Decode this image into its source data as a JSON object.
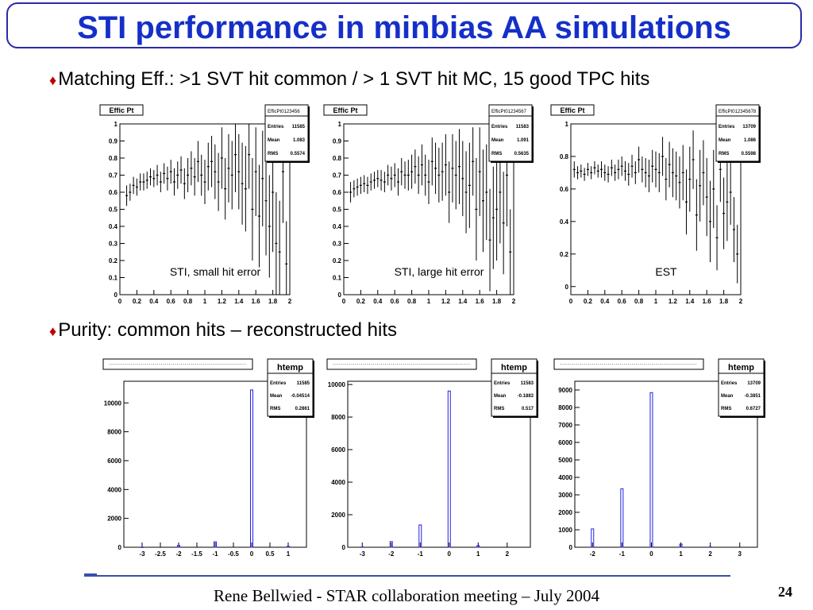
{
  "title": "STI performance in minbias AA simulations",
  "bullet1": "Matching Eff.: >1 SVT hit common / > 1 SVT hit MC, 15 good TPC hits",
  "bullet2": "Purity: common hits – reconstructed hits",
  "bullet_symbol": "♦",
  "footer": "Rene Bellwied - STAR collaboration meeting – July 2004",
  "page_number": "24",
  "chart_data": [
    {
      "type": "scatter",
      "frame_title": "Effic Pt",
      "stats": {
        "name": "EfficPt0123456",
        "rows": [
          [
            "Entries",
            "11585"
          ],
          [
            "Mean",
            "1.083"
          ],
          [
            "RMS",
            "0.5574"
          ]
        ]
      },
      "label": "STI, small hit error",
      "xlim": [
        0,
        2
      ],
      "ylim": [
        0,
        1
      ],
      "xticks": [
        "0",
        "0.2",
        "0.4",
        "0.6",
        "0.8",
        "1",
        "1.2",
        "1.4",
        "1.6",
        "1.8",
        "2"
      ],
      "yticks": [
        "0",
        "0.1",
        "0.2",
        "0.3",
        "0.4",
        "0.5",
        "0.6",
        "0.7",
        "0.8",
        "0.9",
        "1"
      ],
      "ytick_values": [
        0,
        0.1,
        0.2,
        0.3,
        0.4,
        0.5,
        0.6,
        0.7,
        0.8,
        0.9,
        1
      ],
      "x": [
        0.08,
        0.12,
        0.16,
        0.2,
        0.24,
        0.28,
        0.32,
        0.36,
        0.4,
        0.44,
        0.48,
        0.52,
        0.56,
        0.6,
        0.64,
        0.68,
        0.72,
        0.76,
        0.8,
        0.84,
        0.88,
        0.92,
        0.96,
        1.0,
        1.04,
        1.08,
        1.12,
        1.16,
        1.2,
        1.24,
        1.28,
        1.32,
        1.36,
        1.4,
        1.44,
        1.48,
        1.52,
        1.56,
        1.6,
        1.64,
        1.68,
        1.72,
        1.76,
        1.8,
        1.84,
        1.88,
        1.92,
        1.96
      ],
      "y": [
        0.58,
        0.6,
        0.64,
        0.63,
        0.66,
        0.66,
        0.67,
        0.69,
        0.68,
        0.7,
        0.66,
        0.71,
        0.68,
        0.72,
        0.66,
        0.7,
        0.73,
        0.65,
        0.7,
        0.74,
        0.69,
        0.78,
        0.7,
        0.66,
        0.75,
        0.78,
        0.72,
        0.66,
        0.8,
        0.62,
        0.74,
        0.7,
        0.82,
        0.72,
        0.65,
        0.62,
        0.82,
        0.5,
        0.72,
        0.46,
        0.68,
        0.55,
        0.4,
        0.6,
        0.3,
        0.25,
        0.72,
        0.18
      ],
      "err": [
        0.06,
        0.05,
        0.05,
        0.05,
        0.05,
        0.05,
        0.05,
        0.05,
        0.05,
        0.06,
        0.06,
        0.06,
        0.07,
        0.07,
        0.08,
        0.08,
        0.08,
        0.09,
        0.1,
        0.1,
        0.11,
        0.12,
        0.12,
        0.13,
        0.14,
        0.15,
        0.16,
        0.17,
        0.18,
        0.18,
        0.2,
        0.2,
        0.22,
        0.22,
        0.24,
        0.25,
        0.2,
        0.3,
        0.26,
        0.3,
        0.28,
        0.32,
        0.3,
        0.35,
        0.3,
        0.3,
        0.3,
        0.25
      ]
    },
    {
      "type": "scatter",
      "frame_title": "Effic Pt",
      "stats": {
        "name": "EfficPt01234567",
        "rows": [
          [
            "Entries",
            "11583"
          ],
          [
            "Mean",
            "1.091"
          ],
          [
            "RMS",
            "0.5635"
          ]
        ]
      },
      "label": "STI, large hit error",
      "xlim": [
        0,
        2
      ],
      "ylim": [
        0,
        1
      ],
      "xticks": [
        "0",
        "0.2",
        "0.4",
        "0.6",
        "0.8",
        "1",
        "1.2",
        "1.4",
        "1.6",
        "1.8",
        "2"
      ],
      "yticks": [
        "0",
        "0.1",
        "0.2",
        "0.3",
        "0.4",
        "0.5",
        "0.6",
        "0.7",
        "0.8",
        "0.9",
        "1"
      ],
      "ytick_values": [
        0,
        0.1,
        0.2,
        0.3,
        0.4,
        0.5,
        0.6,
        0.7,
        0.8,
        0.9,
        1
      ],
      "x": [
        0.08,
        0.12,
        0.16,
        0.2,
        0.24,
        0.28,
        0.32,
        0.36,
        0.4,
        0.44,
        0.48,
        0.52,
        0.56,
        0.6,
        0.64,
        0.68,
        0.72,
        0.76,
        0.8,
        0.84,
        0.88,
        0.92,
        0.96,
        1.0,
        1.04,
        1.08,
        1.12,
        1.16,
        1.2,
        1.24,
        1.28,
        1.32,
        1.36,
        1.4,
        1.44,
        1.48,
        1.52,
        1.56,
        1.6,
        1.64,
        1.68,
        1.72,
        1.76,
        1.8,
        1.84,
        1.88,
        1.92,
        1.96
      ],
      "y": [
        0.6,
        0.62,
        0.63,
        0.64,
        0.65,
        0.64,
        0.66,
        0.67,
        0.68,
        0.67,
        0.66,
        0.7,
        0.68,
        0.7,
        0.66,
        0.72,
        0.7,
        0.7,
        0.72,
        0.75,
        0.7,
        0.76,
        0.7,
        0.66,
        0.78,
        0.74,
        0.7,
        0.72,
        0.76,
        0.6,
        0.74,
        0.7,
        0.75,
        0.68,
        0.6,
        0.64,
        0.78,
        0.5,
        0.72,
        0.55,
        0.6,
        0.32,
        0.45,
        0.5,
        0.6,
        0.42,
        0.7,
        0.25
      ],
      "err": [
        0.06,
        0.05,
        0.05,
        0.05,
        0.05,
        0.05,
        0.05,
        0.05,
        0.05,
        0.06,
        0.06,
        0.06,
        0.07,
        0.07,
        0.08,
        0.08,
        0.08,
        0.09,
        0.1,
        0.1,
        0.11,
        0.12,
        0.12,
        0.13,
        0.14,
        0.15,
        0.16,
        0.17,
        0.18,
        0.18,
        0.2,
        0.2,
        0.22,
        0.22,
        0.24,
        0.25,
        0.2,
        0.3,
        0.26,
        0.3,
        0.28,
        0.3,
        0.3,
        0.3,
        0.3,
        0.3,
        0.3,
        0.25
      ]
    },
    {
      "type": "scatter",
      "frame_title": "Effic Pt",
      "stats": {
        "name": "EfficPt012345678",
        "rows": [
          [
            "Entries",
            "13709"
          ],
          [
            "Mean",
            "1.086"
          ],
          [
            "RMS",
            "0.5598"
          ]
        ]
      },
      "label": "EST",
      "xlim": [
        0,
        2
      ],
      "ylim": [
        -0.05,
        1
      ],
      "xticks": [
        "0",
        "0.2",
        "0.4",
        "0.6",
        "0.8",
        "1",
        "1.2",
        "1.4",
        "1.6",
        "1.8",
        "2"
      ],
      "yticks": [
        "0",
        "0.2",
        "0.4",
        "0.6",
        "0.8",
        "1"
      ],
      "ytick_values": [
        0,
        0.2,
        0.4,
        0.6,
        0.8,
        1
      ],
      "x": [
        0.04,
        0.08,
        0.12,
        0.16,
        0.2,
        0.24,
        0.28,
        0.32,
        0.36,
        0.4,
        0.44,
        0.48,
        0.52,
        0.56,
        0.6,
        0.64,
        0.68,
        0.72,
        0.76,
        0.8,
        0.84,
        0.88,
        0.92,
        0.96,
        1.0,
        1.04,
        1.08,
        1.12,
        1.16,
        1.2,
        1.24,
        1.28,
        1.32,
        1.36,
        1.4,
        1.44,
        1.48,
        1.52,
        1.56,
        1.6,
        1.64,
        1.68,
        1.72,
        1.76,
        1.8,
        1.84,
        1.88,
        1.92,
        1.96
      ],
      "y": [
        0.72,
        0.7,
        0.71,
        0.69,
        0.72,
        0.7,
        0.73,
        0.71,
        0.72,
        0.7,
        0.69,
        0.73,
        0.7,
        0.72,
        0.74,
        0.71,
        0.69,
        0.74,
        0.7,
        0.78,
        0.72,
        0.7,
        0.68,
        0.74,
        0.72,
        0.7,
        0.8,
        0.66,
        0.75,
        0.7,
        0.68,
        0.64,
        0.7,
        0.52,
        0.66,
        0.78,
        0.44,
        0.62,
        0.7,
        0.55,
        0.4,
        0.6,
        0.3,
        0.72,
        0.45,
        0.52,
        0.58,
        0.35,
        0.2
      ],
      "err": [
        0.05,
        0.04,
        0.04,
        0.04,
        0.04,
        0.04,
        0.04,
        0.04,
        0.05,
        0.05,
        0.05,
        0.05,
        0.05,
        0.06,
        0.06,
        0.06,
        0.07,
        0.07,
        0.07,
        0.08,
        0.08,
        0.09,
        0.1,
        0.1,
        0.11,
        0.12,
        0.12,
        0.13,
        0.14,
        0.15,
        0.15,
        0.16,
        0.17,
        0.2,
        0.2,
        0.18,
        0.22,
        0.22,
        0.2,
        0.24,
        0.25,
        0.24,
        0.2,
        0.2,
        0.22,
        0.24,
        0.2,
        0.2,
        0.18
      ]
    },
    {
      "type": "bar",
      "stats": {
        "name": "htemp",
        "rows": [
          [
            "Entries",
            "11585"
          ],
          [
            "Mean",
            "-0.04514"
          ],
          [
            "RMS",
            "0.2861"
          ]
        ]
      },
      "xlim": [
        -3.5,
        1.5
      ],
      "ylim": [
        0,
        11500
      ],
      "xticks": [
        "-3",
        "-2.5",
        "-2",
        "-1.5",
        "-1",
        "-0.5",
        "0",
        "0.5",
        "1"
      ],
      "xtick_values": [
        -3,
        -2.5,
        -2,
        -1.5,
        -1,
        -0.5,
        0,
        0.5,
        1
      ],
      "yticks": [
        "0",
        "2000",
        "4000",
        "6000",
        "8000",
        "10000"
      ],
      "ytick_values": [
        0,
        2000,
        4000,
        6000,
        8000,
        10000
      ],
      "x": [
        -3,
        -2,
        -1,
        0,
        1
      ],
      "values": [
        10,
        120,
        380,
        10900,
        60
      ]
    },
    {
      "type": "bar",
      "stats": {
        "name": "htemp",
        "rows": [
          [
            "Entries",
            "11583"
          ],
          [
            "Mean",
            "-0.1883"
          ],
          [
            "RMS",
            "0.517"
          ]
        ]
      },
      "xlim": [
        -3.5,
        2.8
      ],
      "ylim": [
        0,
        10200
      ],
      "xticks": [
        "-3",
        "-2",
        "-1",
        "0",
        "1",
        "2"
      ],
      "xtick_values": [
        -3,
        -2,
        -1,
        0,
        1,
        2
      ],
      "yticks": [
        "0",
        "2000",
        "4000",
        "6000",
        "8000",
        "10000"
      ],
      "ytick_values": [
        0,
        2000,
        4000,
        6000,
        8000,
        10000
      ],
      "x": [
        -3,
        -2,
        -1,
        0,
        1
      ],
      "values": [
        20,
        350,
        1370,
        9600,
        100
      ]
    },
    {
      "type": "bar",
      "stats": {
        "name": "htemp",
        "rows": [
          [
            "Entries",
            "13709"
          ],
          [
            "Mean",
            "-0.3851"
          ],
          [
            "RMS",
            "0.6727"
          ]
        ]
      },
      "xlim": [
        -2.6,
        3.6
      ],
      "ylim": [
        0,
        9500
      ],
      "xticks": [
        "-2",
        "-1",
        "0",
        "1",
        "2",
        "3"
      ],
      "xtick_values": [
        -2,
        -1,
        0,
        1,
        2,
        3
      ],
      "yticks": [
        "0",
        "1000",
        "2000",
        "3000",
        "4000",
        "5000",
        "6000",
        "7000",
        "8000",
        "9000"
      ],
      "ytick_values": [
        0,
        1000,
        2000,
        3000,
        4000,
        5000,
        6000,
        7000,
        8000,
        9000
      ],
      "x": [
        -2,
        -1,
        0,
        1,
        2
      ],
      "values": [
        1050,
        3350,
        8850,
        180,
        20
      ]
    }
  ]
}
